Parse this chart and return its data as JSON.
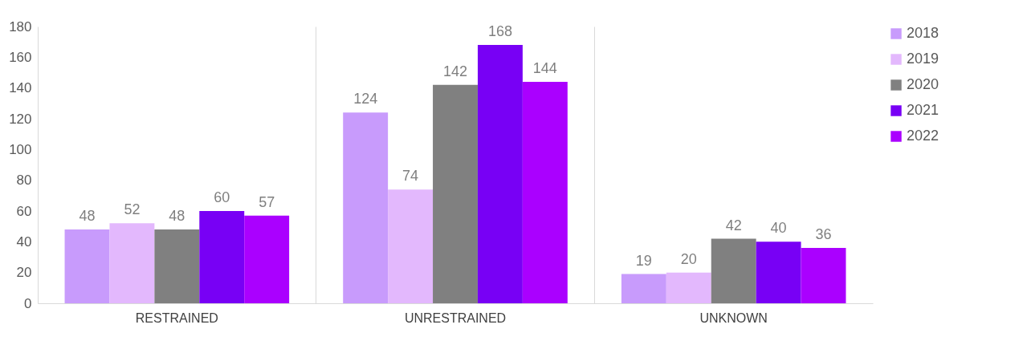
{
  "chart_data": {
    "type": "bar",
    "categories": [
      "RESTRAINED",
      "UNRESTRAINED",
      "UNKNOWN"
    ],
    "series": [
      {
        "name": "2018",
        "color": "#c89bfc",
        "values": [
          48,
          124,
          19
        ]
      },
      {
        "name": "2019",
        "color": "#e3b8fd",
        "values": [
          52,
          74,
          20
        ]
      },
      {
        "name": "2020",
        "color": "#808080",
        "values": [
          48,
          142,
          42
        ]
      },
      {
        "name": "2021",
        "color": "#7800f5",
        "values": [
          60,
          168,
          40
        ]
      },
      {
        "name": "2022",
        "color": "#aa00ff",
        "values": [
          57,
          144,
          36
        ]
      }
    ],
    "ylim": [
      0,
      180
    ],
    "yticks": [
      0,
      20,
      40,
      60,
      80,
      100,
      120,
      140,
      160,
      180
    ],
    "grid": "x",
    "legend": "right",
    "data_labels": true
  }
}
